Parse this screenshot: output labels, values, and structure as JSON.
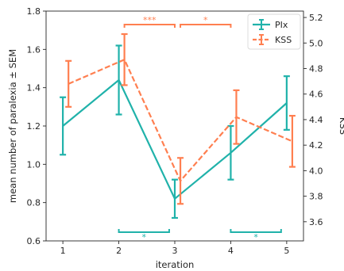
{
  "chart_data": {
    "type": "line",
    "x": [
      1,
      2,
      3,
      4,
      5
    ],
    "xlabel": "iteration",
    "ylabel": "mean number of paralexia ± SEM",
    "ylabel_right": "KSS",
    "xlim": [
      0.7,
      5.3
    ],
    "ylim": [
      0.6,
      1.8
    ],
    "ylim_right": [
      3.45,
      5.25
    ],
    "xticks": [
      "1",
      "2",
      "3",
      "4",
      "5"
    ],
    "yticks": [
      "0.6",
      "0.8",
      "1.0",
      "1.2",
      "1.4",
      "1.6",
      "1.8"
    ],
    "yticks_right": [
      "3.6",
      "3.8",
      "4.0",
      "4.2",
      "4.4",
      "4.6",
      "4.8",
      "5.0",
      "5.2"
    ],
    "grid": false,
    "legend_position": "top-right",
    "series": [
      {
        "name": "PIx",
        "axis": "left",
        "color": "#20b2aa",
        "linestyle": "solid",
        "x": [
          1,
          2,
          3,
          4,
          5
        ],
        "values": [
          1.2,
          1.44,
          0.82,
          1.06,
          1.32
        ],
        "errors": [
          0.15,
          0.18,
          0.1,
          0.14,
          0.14
        ]
      },
      {
        "name": "KSS",
        "axis": "right",
        "color": "#ff7f50",
        "linestyle": "dashed",
        "x": [
          1.1,
          2.1,
          3.1,
          4.1,
          5.1
        ],
        "values": [
          4.68,
          4.87,
          3.92,
          4.42,
          4.23
        ],
        "errors": [
          0.18,
          0.2,
          0.18,
          0.21,
          0.2
        ]
      }
    ],
    "annotations": [
      {
        "label": "***",
        "x_start": 2.1,
        "x_end": 3.0,
        "color": "#ff7f50",
        "position": "top"
      },
      {
        "label": "*",
        "x_start": 3.1,
        "x_end": 4.0,
        "color": "#ff7f50",
        "position": "top"
      },
      {
        "label": "*",
        "x_start": 2.0,
        "x_end": 2.9,
        "color": "#20b2aa",
        "position": "bottom"
      },
      {
        "label": "*",
        "x_start": 4.0,
        "x_end": 4.9,
        "color": "#20b2aa",
        "position": "bottom"
      }
    ]
  }
}
